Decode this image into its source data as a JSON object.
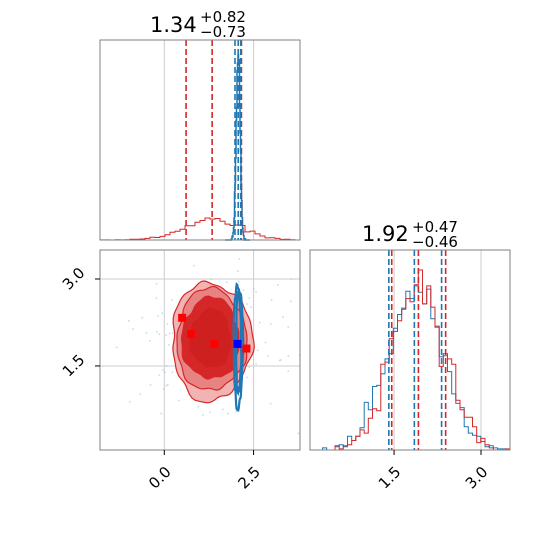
{
  "chart_data": {
    "type": "corner",
    "colors": {
      "red": "#d62728",
      "blue": "#1f77b4",
      "grid": "#cccccc",
      "axis": "#808080"
    },
    "parameters": [
      {
        "title_value": "1.34",
        "title_upper": "+0.82",
        "title_lower": "−0.73"
      },
      {
        "title_value": "1.92",
        "title_upper": "+0.47",
        "title_lower": "−0.46"
      }
    ],
    "x0_ticks": [
      {
        "value": 0.0,
        "label": "0.0"
      },
      {
        "value": 2.5,
        "label": "2.5"
      }
    ],
    "x1_ticks": [
      {
        "value": 1.5,
        "label": "1.5"
      },
      {
        "value": 3.0,
        "label": "3.0"
      }
    ],
    "y1_ticks": [
      {
        "value": 1.5,
        "label": "1.5"
      },
      {
        "value": 3.0,
        "label": "3.0"
      }
    ],
    "ranges": {
      "x0": [
        -1.8,
        3.8
      ],
      "x1": [
        0.05,
        3.5
      ]
    },
    "hist0_quantiles": {
      "red": [
        0.61,
        1.34,
        2.16
      ],
      "blue": [
        1.98,
        2.07,
        2.14
      ]
    },
    "hist1_quantiles": {
      "red": [
        1.46,
        1.92,
        2.39
      ],
      "blue": [
        1.41,
        1.85,
        2.32
      ]
    },
    "markers": {
      "red": [
        {
          "x": 0.5,
          "y": 2.33
        },
        {
          "x": 0.75,
          "y": 2.05
        },
        {
          "x": 1.4,
          "y": 1.88
        },
        {
          "x": 2.3,
          "y": 1.8
        }
      ],
      "blue": [
        {
          "x": 2.05,
          "y": 1.88
        }
      ]
    }
  }
}
